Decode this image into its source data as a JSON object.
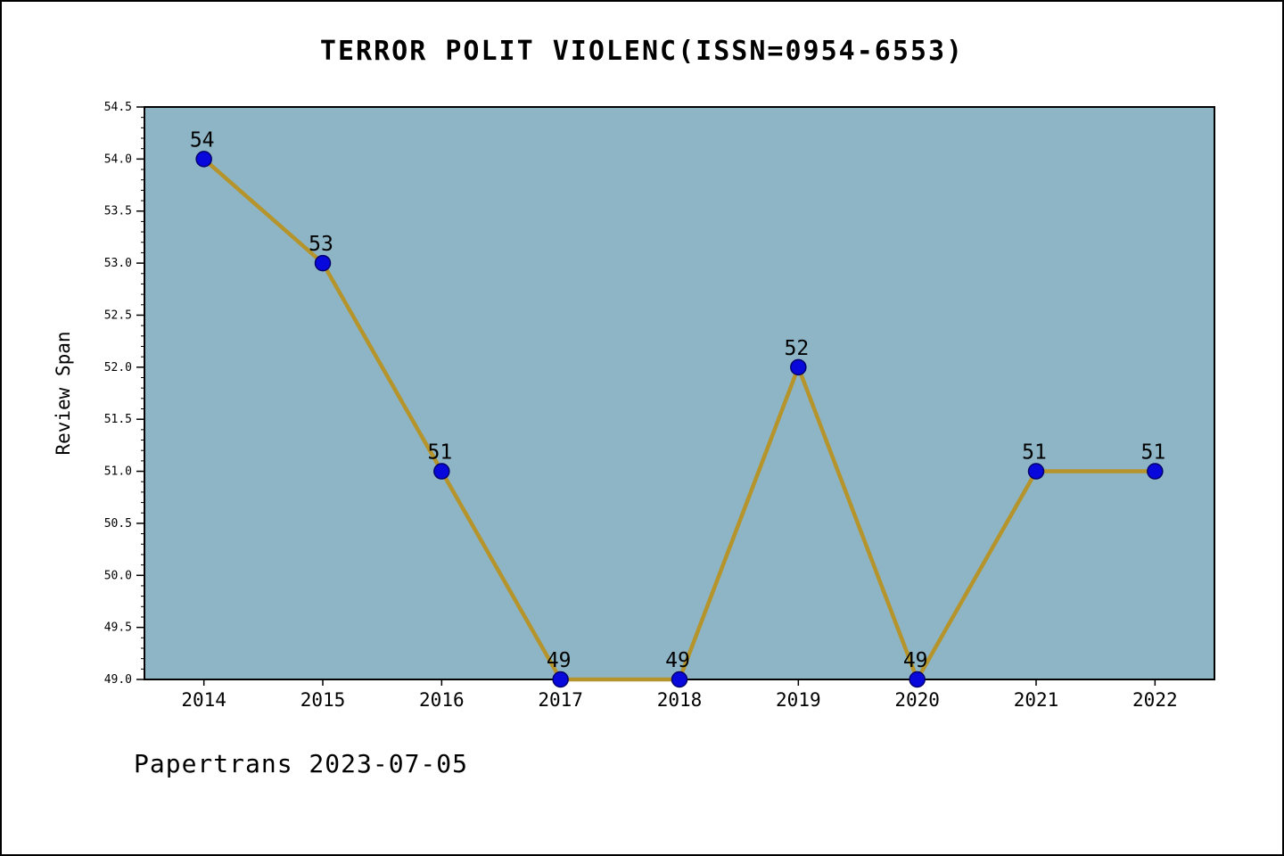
{
  "title": "TERROR POLIT VIOLENC(ISSN=0954-6553)",
  "footer": "Papertrans 2023-07-05",
  "chart_data": {
    "type": "line",
    "title": "TERROR POLIT VIOLENC(ISSN=0954-6553)",
    "xlabel": "",
    "ylabel": "Review Span",
    "categories": [
      "2014",
      "2015",
      "2016",
      "2017",
      "2018",
      "2019",
      "2020",
      "2021",
      "2022"
    ],
    "series": [
      {
        "name": "Review Span",
        "values": [
          54,
          53,
          51,
          49,
          49,
          52,
          49,
          51,
          51
        ]
      }
    ],
    "point_labels": [
      "54",
      "53",
      "51",
      "49",
      "49",
      "52",
      "49",
      "51",
      "51"
    ],
    "ylim": [
      49.0,
      54.5
    ],
    "ytick_step": 0.5,
    "yminor_step": 0.1,
    "ytick_labels": [
      "49.0",
      "49.5",
      "50.0",
      "50.5",
      "51.0",
      "51.5",
      "52.0",
      "52.5",
      "53.0",
      "53.5",
      "54.0",
      "54.5"
    ],
    "grid": false,
    "legend_position": "none",
    "colors": {
      "plot_background": "#8db5c5",
      "line": "#b5942c",
      "marker_fill": "#0808dd",
      "marker_edge": "#00006e",
      "axis": "#000000",
      "text": "#000000"
    }
  }
}
